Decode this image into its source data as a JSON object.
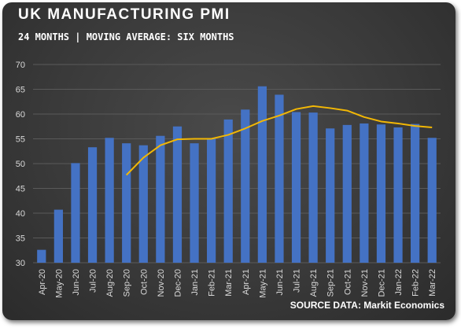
{
  "title": "UK MANUFACTURING PMI",
  "subtitle": "24 MONTHS | MOVING AVERAGE: SIX MONTHS",
  "source": "SOURCE DATA: Markit Economics",
  "colors": {
    "bar": "#4472c4",
    "line": "#f2b705",
    "text": "#ffffff",
    "grid": "#5a5a5a"
  },
  "chart_data": {
    "type": "bar",
    "categories": [
      "Apr-20",
      "May-20",
      "Jun-20",
      "Jul-20",
      "Aug-20",
      "Sep-20",
      "Oct-20",
      "Nov-20",
      "Dec-20",
      "Jan-21",
      "Feb-21",
      "Mar-21",
      "Apr-21",
      "May-21",
      "Jun-21",
      "Jul-21",
      "Aug-21",
      "Sep-21",
      "Oct-21",
      "Nov-21",
      "Dec-21",
      "Jan-22",
      "Feb-22",
      "Mar-22"
    ],
    "series": [
      {
        "type": "bar",
        "values": [
          32.6,
          40.7,
          50.1,
          53.3,
          55.2,
          54.1,
          53.7,
          55.6,
          57.5,
          54.1,
          55.1,
          58.9,
          60.9,
          65.6,
          63.9,
          60.4,
          60.3,
          57.1,
          57.8,
          58.1,
          57.9,
          57.3,
          58.0,
          55.2
        ]
      },
      {
        "type": "line",
        "values": [
          null,
          null,
          null,
          null,
          null,
          47.7,
          51.2,
          53.7,
          54.9,
          55.0,
          55.0,
          55.8,
          57.1,
          58.6,
          59.7,
          61.0,
          61.6,
          61.2,
          60.7,
          59.4,
          58.5,
          58.1,
          57.6,
          57.3
        ]
      }
    ],
    "ylim": [
      30,
      70
    ],
    "yticks": [
      30,
      35,
      40,
      45,
      50,
      55,
      60,
      65,
      70
    ],
    "grid": true,
    "legend": "none"
  }
}
